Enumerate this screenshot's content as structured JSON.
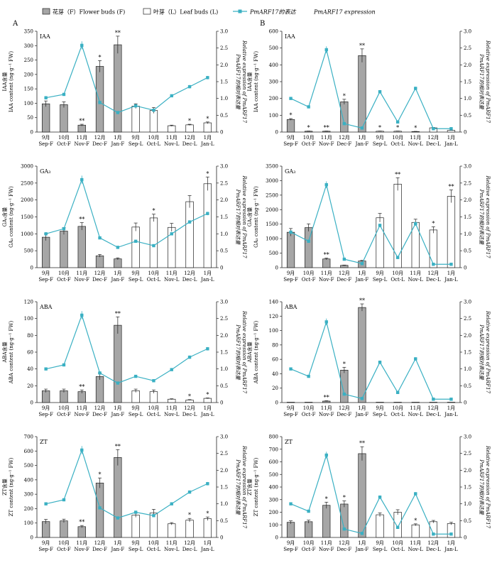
{
  "legend": {
    "flower": "花芽（F）Flower buds (F)",
    "leaf": "叶芽（L）Leaf buds (L)",
    "expr_cn": "PmARF17的表达",
    "expr_en": "PmARF17 expression"
  },
  "colors": {
    "flower_bar": "#a6a6a6",
    "leaf_bar": "#ffffff",
    "expression_line": "#3ab0c3"
  },
  "categories": [
    "9月\nSep-F",
    "10月\nOct-F",
    "11月\nNov-F",
    "12月\nDec-F",
    "1月\nJan-F",
    "9月\nSep-L",
    "10月\nOct-L",
    "11月\nNov-L",
    "12月\nDec-L",
    "1月\nJan-L"
  ],
  "chart_data": [
    {
      "type": "bar",
      "panel": "A",
      "hormone": "IAA",
      "ylabel_cn": "IAA含量",
      "ylabel_en": "IAA content (ng·g⁻¹ FW)",
      "y2label_cn": "PmARF17的相对表达量",
      "y2label_en": "Relative expression of PmARF17",
      "ylim": [
        0,
        350
      ],
      "yticks": [
        0,
        50,
        100,
        150,
        200,
        250,
        300,
        350
      ],
      "y2lim": [
        0,
        3
      ],
      "y2ticks": [
        "0",
        "0.5",
        "1.0",
        "1.5",
        "2.0",
        "2.5",
        "3.0"
      ],
      "values": [
        98,
        95,
        24,
        228,
        303,
        90,
        75,
        22,
        25,
        32
      ],
      "errors": [
        10,
        10,
        3,
        20,
        30,
        8,
        10,
        2,
        2,
        3
      ],
      "sig": [
        "",
        "",
        "**",
        "*",
        "**",
        "",
        "",
        "",
        "*",
        "*"
      ],
      "expression": [
        1.02,
        1.12,
        2.58,
        0.88,
        0.58,
        0.78,
        0.65,
        1.08,
        1.35,
        1.62
      ],
      "expr_err": [
        0.05,
        0.04,
        0.12,
        0.05,
        0.03,
        0.04,
        0.03,
        0.04,
        0.05,
        0.05
      ]
    },
    {
      "type": "bar",
      "panel": "B",
      "hormone": "IAA",
      "ylabel_cn": "IAA含量",
      "ylabel_en": "IAA content (ng·g⁻¹ FW)",
      "y2label_cn": "PmARF17的相对表达量",
      "y2label_en": "Relative expression of PmARF17",
      "ylim": [
        0,
        600
      ],
      "yticks": [
        0,
        100,
        200,
        300,
        400,
        500,
        600
      ],
      "y2lim": [
        0,
        3
      ],
      "y2ticks": [
        "0",
        "0.5",
        "1.0",
        "1.5",
        "2.0",
        "2.5",
        "3.0"
      ],
      "values": [
        75,
        5,
        5,
        180,
        455,
        5,
        5,
        3,
        25,
        10
      ],
      "errors": [
        5,
        1,
        1,
        15,
        40,
        1,
        1,
        1,
        3,
        1
      ],
      "sig": [
        "*",
        "*",
        "**",
        "*",
        "**",
        "*",
        "*",
        "*",
        "",
        ""
      ],
      "expression": [
        1.0,
        0.75,
        2.45,
        0.25,
        0.12,
        1.2,
        0.3,
        1.3,
        0.1,
        0.1
      ],
      "expr_err": [
        0.04,
        0.03,
        0.1,
        0.02,
        0.02,
        0.05,
        0.02,
        0.05,
        0.02,
        0.02
      ]
    },
    {
      "type": "bar",
      "panel": "A",
      "hormone": "GA₃",
      "ylabel_cn": "GA₃含量",
      "ylabel_en": "GA₃ content (ng·g⁻¹ FW)",
      "y2label_cn": "PmARF17的相对表达量",
      "y2label_en": "Relative expression of PmARF17",
      "ylim": [
        0,
        3000
      ],
      "yticks": [
        0,
        500,
        1000,
        1500,
        2000,
        2500,
        3000
      ],
      "y2lim": [
        0,
        3
      ],
      "y2ticks": [
        "0",
        "0.5",
        "1.0",
        "1.5",
        "2.0",
        "2.5",
        "3.0"
      ],
      "values": [
        900,
        1080,
        1220,
        350,
        260,
        1200,
        1470,
        1190,
        1950,
        2480
      ],
      "errors": [
        100,
        100,
        110,
        40,
        30,
        120,
        110,
        120,
        180,
        200
      ],
      "sig": [
        "",
        "",
        "**",
        "",
        "",
        "",
        "*",
        "",
        "",
        "*"
      ],
      "expression": [
        1.0,
        1.15,
        2.6,
        0.88,
        0.6,
        0.78,
        0.65,
        1.0,
        1.35,
        1.6
      ],
      "expr_err": [
        0.04,
        0.04,
        0.12,
        0.04,
        0.03,
        0.04,
        0.03,
        0.04,
        0.05,
        0.05
      ]
    },
    {
      "type": "bar",
      "panel": "B",
      "hormone": "GA₃",
      "ylabel_cn": "GA₃含量",
      "ylabel_en": "GA₃ content (ng·g⁻¹ FW)",
      "y2label_cn": "PmARF17的相对表达量",
      "y2label_en": "Relative expression of PmARF17",
      "ylim": [
        0,
        3500
      ],
      "yticks": [
        0,
        500,
        1000,
        1500,
        2000,
        2500,
        3000,
        3500
      ],
      "y2lim": [
        0,
        3
      ],
      "y2ticks": [
        "0",
        "0.5",
        "1.0",
        "1.5",
        "2.0",
        "2.5",
        "3.0"
      ],
      "values": [
        1220,
        1380,
        300,
        80,
        230,
        1720,
        2880,
        1560,
        1300,
        2460
      ],
      "errors": [
        130,
        130,
        30,
        10,
        20,
        150,
        220,
        110,
        110,
        220
      ],
      "sig": [
        "",
        "",
        "**",
        "",
        "",
        "",
        "**",
        "",
        "*",
        "**"
      ],
      "expression": [
        1.05,
        0.78,
        2.45,
        0.25,
        0.12,
        1.25,
        0.3,
        1.3,
        0.1,
        0.1
      ],
      "expr_err": [
        0.05,
        0.04,
        0.1,
        0.02,
        0.02,
        0.05,
        0.02,
        0.05,
        0.02,
        0.02
      ]
    },
    {
      "type": "bar",
      "panel": "A",
      "hormone": "ABA",
      "ylabel_cn": "ABA含量",
      "ylabel_en": "ABA content (ng·g⁻¹ FW)",
      "y2label_cn": "PmARF17的相对表达量",
      "y2label_en": "Relative expression of PmARF17",
      "ylim": [
        0,
        120
      ],
      "yticks": [
        0,
        20,
        40,
        60,
        80,
        100,
        120
      ],
      "y2lim": [
        0,
        3
      ],
      "y2ticks": [
        "0",
        "0.5",
        "1.0",
        "1.5",
        "2.0",
        "2.5",
        "3.0"
      ],
      "values": [
        14,
        14,
        13,
        31,
        92,
        14,
        13,
        4,
        3,
        5
      ],
      "errors": [
        2,
        2,
        2,
        4,
        10,
        2,
        2,
        0.5,
        0.5,
        0.5
      ],
      "sig": [
        "",
        "",
        "**",
        "",
        "**",
        "",
        "",
        "",
        "*",
        "*"
      ],
      "expression": [
        1.0,
        1.12,
        2.6,
        0.88,
        0.58,
        0.78,
        0.65,
        0.98,
        1.35,
        1.6
      ],
      "expr_err": [
        0.04,
        0.04,
        0.12,
        0.04,
        0.03,
        0.03,
        0.03,
        0.04,
        0.05,
        0.05
      ]
    },
    {
      "type": "bar",
      "panel": "B",
      "hormone": "ABA",
      "ylabel_cn": "ABA含量",
      "ylabel_en": "ABA content (ng·g⁻¹ FW)",
      "y2label_cn": "PmARF17的相对表达量",
      "y2label_en": "Relative expression of PmARF17",
      "ylim": [
        0,
        140
      ],
      "yticks": [
        0,
        20,
        40,
        60,
        80,
        100,
        120,
        140
      ],
      "y2lim": [
        0,
        3
      ],
      "y2ticks": [
        "0",
        "0.5",
        "1.0",
        "1.5",
        "2.0",
        "2.5",
        "3.0"
      ],
      "values": [
        0.5,
        0.5,
        2,
        45,
        132,
        0.5,
        0.5,
        0.5,
        0.5,
        0.5
      ],
      "errors": [
        0,
        0,
        0.5,
        4,
        5,
        0,
        0,
        0,
        0,
        0
      ],
      "sig": [
        "",
        "",
        "**",
        "*",
        "**",
        "",
        "",
        "",
        "",
        ""
      ],
      "expression": [
        1.0,
        0.78,
        2.4,
        0.25,
        0.12,
        1.2,
        0.3,
        1.3,
        0.1,
        0.1
      ],
      "expr_err": [
        0.04,
        0.03,
        0.1,
        0.02,
        0.02,
        0.05,
        0.02,
        0.05,
        0.02,
        0.02
      ]
    },
    {
      "type": "bar",
      "panel": "A",
      "hormone": "ZT",
      "ylabel_cn": "ZT含量",
      "ylabel_en": "ZT content (ng·g⁻¹ FW)",
      "y2label_cn": "PmARF17的相对表达量",
      "y2label_en": "Relative expression of PmARF17",
      "ylim": [
        0,
        700
      ],
      "yticks": [
        0,
        100,
        200,
        300,
        400,
        500,
        600,
        700
      ],
      "y2lim": [
        0,
        3
      ],
      "y2ticks": [
        "0",
        "0.5",
        "1.0",
        "1.5",
        "2.0",
        "2.5",
        "3.0"
      ],
      "values": [
        110,
        115,
        75,
        378,
        555,
        155,
        170,
        95,
        120,
        130
      ],
      "errors": [
        15,
        12,
        8,
        35,
        55,
        15,
        25,
        8,
        12,
        12
      ],
      "sig": [
        "",
        "",
        "**",
        "*",
        "**",
        "",
        "",
        "",
        "*",
        "*"
      ],
      "expression": [
        1.0,
        1.12,
        2.6,
        0.88,
        0.58,
        0.75,
        0.65,
        1.0,
        1.35,
        1.6
      ],
      "expr_err": [
        0.04,
        0.04,
        0.12,
        0.04,
        0.03,
        0.03,
        0.03,
        0.04,
        0.05,
        0.05
      ]
    },
    {
      "type": "bar",
      "panel": "B",
      "hormone": "ZT",
      "ylabel_cn": "ZT含量",
      "ylabel_en": "ZT content (ng·g⁻¹ FW)",
      "y2label_cn": "PmARF17的相对表达量",
      "y2label_en": "Relative expression of PmARF17",
      "ylim": [
        0,
        800
      ],
      "yticks": [
        0,
        100,
        200,
        300,
        400,
        500,
        600,
        700,
        800
      ],
      "y2lim": [
        0,
        3
      ],
      "y2ticks": [
        "0",
        "0.5",
        "1.0",
        "1.5",
        "2.0",
        "2.5",
        "3.0"
      ],
      "values": [
        120,
        125,
        255,
        265,
        665,
        180,
        200,
        100,
        125,
        110
      ],
      "errors": [
        12,
        12,
        25,
        25,
        55,
        15,
        20,
        8,
        10,
        10
      ],
      "sig": [
        "",
        "",
        "*",
        "*",
        "**",
        "",
        "",
        "*",
        "",
        ""
      ],
      "expression": [
        1.0,
        0.78,
        2.45,
        0.25,
        0.12,
        1.2,
        0.3,
        1.3,
        0.1,
        0.1
      ],
      "expr_err": [
        0.04,
        0.03,
        0.1,
        0.02,
        0.02,
        0.05,
        0.02,
        0.05,
        0.02,
        0.02
      ]
    }
  ]
}
